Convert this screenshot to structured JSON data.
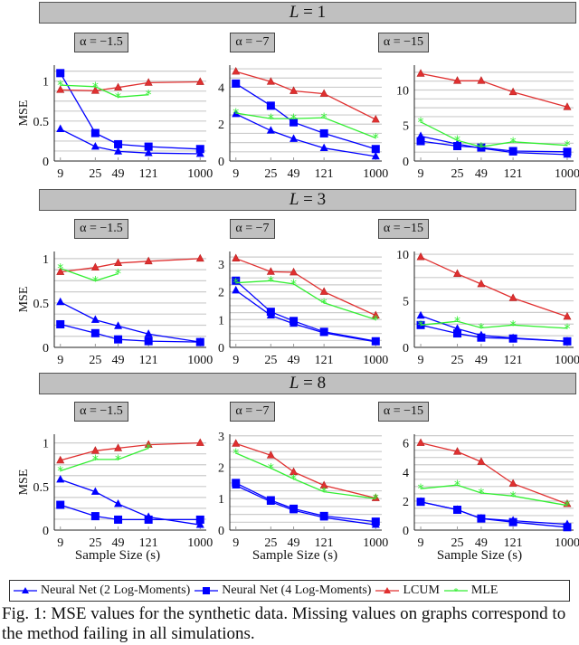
{
  "caption": "Fig. 1: MSE values for the synthetic data. Missing values on graphs correspond to the method failing in all simulations.",
  "colors": {
    "nn2": "#0000ff",
    "nn4": "#0000ff",
    "lcum": "#e03030",
    "mle": "#33ee33"
  },
  "legend": [
    {
      "label": "Neural Net (2 Log-Moments)",
      "marker": "triangle",
      "color": "#0000ff"
    },
    {
      "label": "Neural Net (4 Log-Moments)",
      "marker": "square",
      "color": "#0000ff"
    },
    {
      "label": "LCUM",
      "marker": "triangle",
      "color": "#e03030"
    },
    {
      "label": "MLE",
      "marker": "star",
      "color": "#33ee33"
    }
  ],
  "xlabel": "Sample Size (s)",
  "ylabel": "MSE",
  "groups": [
    {
      "title_var": "L",
      "title_val": "= 1"
    },
    {
      "title_var": "L",
      "title_val": "= 3"
    },
    {
      "title_var": "L",
      "title_val": "= 8"
    }
  ],
  "chart_data": [
    {
      "type": "line",
      "group": "L = 1",
      "title": "α = −1.5",
      "x": [
        9,
        25,
        49,
        121,
        1000
      ],
      "xticks": [
        "9",
        "25",
        "49",
        "121",
        "1000"
      ],
      "ylim": [
        0,
        1.2
      ],
      "yticks": [
        0,
        0.5,
        1
      ],
      "ytick_labels": [
        "0",
        "0.5",
        "1"
      ],
      "grid": true,
      "series": [
        {
          "name": "Neural Net (2 Log-Moments)",
          "values": [
            0.4,
            0.18,
            0.12,
            0.1,
            0.09
          ]
        },
        {
          "name": "Neural Net (4 Log-Moments)",
          "values": [
            1.1,
            0.35,
            0.21,
            0.18,
            0.15
          ]
        },
        {
          "name": "LCUM",
          "values": [
            0.89,
            0.88,
            0.92,
            0.98,
            0.99
          ]
        },
        {
          "name": "MLE",
          "values": [
            0.95,
            0.93,
            0.8,
            0.83,
            null
          ]
        }
      ]
    },
    {
      "type": "line",
      "group": "L = 1",
      "title": "α = −7",
      "x": [
        9,
        25,
        49,
        121,
        1000
      ],
      "xticks": [
        "9",
        "25",
        "49",
        "121",
        "1000"
      ],
      "ylim": [
        0,
        5.2
      ],
      "yticks": [
        0,
        2,
        4
      ],
      "ytick_labels": [
        "0",
        "2",
        "4"
      ],
      "grid": true,
      "series": [
        {
          "name": "Neural Net (2 Log-Moments)",
          "values": [
            2.55,
            1.65,
            1.2,
            0.7,
            0.25
          ]
        },
        {
          "name": "Neural Net (4 Log-Moments)",
          "values": [
            4.2,
            3.0,
            2.1,
            1.5,
            0.65
          ]
        },
        {
          "name": "LCUM",
          "values": [
            4.85,
            4.3,
            3.8,
            3.65,
            2.25
          ]
        },
        {
          "name": "MLE",
          "values": [
            2.6,
            2.3,
            2.3,
            2.35,
            1.25
          ]
        }
      ]
    },
    {
      "type": "line",
      "group": "L = 1",
      "title": "α = −15",
      "x": [
        9,
        25,
        49,
        121,
        1000
      ],
      "xticks": [
        "9",
        "25",
        "49",
        "121",
        "1000"
      ],
      "ylim": [
        0,
        13.5
      ],
      "yticks": [
        0,
        5,
        10
      ],
      "ytick_labels": [
        "0",
        "5",
        "10"
      ],
      "grid": true,
      "series": [
        {
          "name": "Neural Net (2 Log-Moments)",
          "values": [
            3.5,
            2.4,
            1.8,
            1.2,
            0.9
          ]
        },
        {
          "name": "Neural Net (4 Log-Moments)",
          "values": [
            2.8,
            2.1,
            1.9,
            1.4,
            1.3
          ]
        },
        {
          "name": "LCUM",
          "values": [
            12.3,
            11.3,
            11.3,
            9.7,
            7.6
          ]
        },
        {
          "name": "MLE",
          "values": [
            5.5,
            2.9,
            2.0,
            2.7,
            2.2
          ]
        }
      ]
    },
    {
      "type": "line",
      "group": "L = 3",
      "title": "α = −1.5",
      "x": [
        9,
        25,
        49,
        121,
        1000
      ],
      "xticks": [
        "9",
        "25",
        "49",
        "121",
        "1000"
      ],
      "ylim": [
        0,
        1.08
      ],
      "yticks": [
        0,
        0.5,
        1
      ],
      "ytick_labels": [
        "0",
        "0.5",
        "1"
      ],
      "grid": true,
      "series": [
        {
          "name": "Neural Net (2 Log-Moments)",
          "values": [
            0.51,
            0.31,
            0.24,
            0.15,
            0.06
          ]
        },
        {
          "name": "Neural Net (4 Log-Moments)",
          "values": [
            0.26,
            0.16,
            0.09,
            0.07,
            0.06
          ]
        },
        {
          "name": "LCUM",
          "values": [
            0.85,
            0.9,
            0.95,
            0.97,
            1.0
          ]
        },
        {
          "name": "MLE",
          "values": [
            0.89,
            0.75,
            0.83,
            null,
            null
          ]
        }
      ]
    },
    {
      "type": "line",
      "group": "L = 3",
      "title": "α = −7",
      "x": [
        9,
        25,
        49,
        121,
        1000
      ],
      "xticks": [
        "9",
        "25",
        "49",
        "121",
        "1000"
      ],
      "ylim": [
        0,
        3.45
      ],
      "yticks": [
        0,
        1,
        2,
        3
      ],
      "ytick_labels": [
        "0",
        "1",
        "2",
        "3"
      ],
      "grid": true,
      "series": [
        {
          "name": "Neural Net (2 Log-Moments)",
          "values": [
            2.05,
            1.15,
            0.85,
            0.52,
            0.2
          ]
        },
        {
          "name": "Neural Net (4 Log-Moments)",
          "values": [
            2.4,
            1.28,
            0.95,
            0.56,
            0.22
          ]
        },
        {
          "name": "LCUM",
          "values": [
            3.2,
            2.72,
            2.7,
            2.0,
            1.15
          ]
        },
        {
          "name": "MLE",
          "values": [
            2.32,
            2.4,
            2.28,
            1.6,
            1.0
          ]
        }
      ]
    },
    {
      "type": "line",
      "group": "L = 3",
      "title": "α = −15",
      "x": [
        9,
        25,
        49,
        121,
        1000
      ],
      "xticks": [
        "9",
        "25",
        "49",
        "121",
        "1000"
      ],
      "ylim": [
        0,
        10.3
      ],
      "yticks": [
        0,
        5,
        10
      ],
      "ytick_labels": [
        "0",
        "5",
        "10"
      ],
      "grid": true,
      "series": [
        {
          "name": "Neural Net (2 Log-Moments)",
          "values": [
            3.4,
            2.0,
            1.3,
            1.0,
            0.65
          ]
        },
        {
          "name": "Neural Net (4 Log-Moments)",
          "values": [
            2.4,
            1.5,
            1.05,
            0.95,
            0.65
          ]
        },
        {
          "name": "LCUM",
          "values": [
            9.7,
            7.9,
            6.8,
            5.3,
            3.3
          ]
        },
        {
          "name": "MLE",
          "values": [
            2.4,
            2.8,
            2.1,
            2.4,
            2.05
          ]
        }
      ]
    },
    {
      "type": "line",
      "group": "L = 8",
      "title": "α = −1.5",
      "x": [
        9,
        25,
        49,
        121,
        1000
      ],
      "xticks": [
        "9",
        "25",
        "49",
        "121",
        "1000"
      ],
      "ylim": [
        0,
        1.1
      ],
      "yticks": [
        0,
        0.5,
        1
      ],
      "ytick_labels": [
        "0",
        "0.5",
        "1"
      ],
      "grid": true,
      "series": [
        {
          "name": "Neural Net (2 Log-Moments)",
          "values": [
            0.58,
            0.44,
            0.3,
            0.15,
            0.06
          ]
        },
        {
          "name": "Neural Net (4 Log-Moments)",
          "values": [
            0.29,
            0.16,
            0.12,
            0.12,
            0.12
          ]
        },
        {
          "name": "LCUM",
          "values": [
            0.8,
            0.91,
            0.94,
            0.98,
            1.0
          ]
        },
        {
          "name": "MLE",
          "values": [
            0.68,
            0.81,
            0.81,
            0.94,
            null
          ]
        }
      ]
    },
    {
      "type": "line",
      "group": "L = 8",
      "title": "α = −7",
      "x": [
        9,
        25,
        49,
        121,
        1000
      ],
      "xticks": [
        "9",
        "25",
        "49",
        "121",
        "1000"
      ],
      "ylim": [
        0,
        3.05
      ],
      "yticks": [
        0,
        1,
        2,
        3
      ],
      "ytick_labels": [
        "0",
        "1",
        "2",
        "3"
      ],
      "grid": true,
      "series": [
        {
          "name": "Neural Net (2 Log-Moments)",
          "values": [
            1.42,
            0.9,
            0.63,
            0.4,
            0.17
          ]
        },
        {
          "name": "Neural Net (4 Log-Moments)",
          "values": [
            1.5,
            0.95,
            0.68,
            0.45,
            0.27
          ]
        },
        {
          "name": "LCUM",
          "values": [
            2.75,
            2.38,
            1.85,
            1.42,
            1.02
          ]
        },
        {
          "name": "MLE",
          "values": [
            2.45,
            1.97,
            1.63,
            1.22,
            1.0
          ]
        }
      ]
    },
    {
      "type": "line",
      "group": "L = 8",
      "title": "α = −15",
      "x": [
        9,
        25,
        49,
        121,
        1000
      ],
      "xticks": [
        "9",
        "25",
        "49",
        "121",
        "1000"
      ],
      "ylim": [
        0,
        6.6
      ],
      "yticks": [
        0,
        2,
        4,
        6
      ],
      "ytick_labels": [
        "0",
        "2",
        "4",
        "6"
      ],
      "grid": true,
      "series": [
        {
          "name": "Neural Net (2 Log-Moments)",
          "values": [
            1.95,
            1.4,
            0.8,
            0.65,
            0.4
          ]
        },
        {
          "name": "Neural Net (4 Log-Moments)",
          "values": [
            1.95,
            1.4,
            0.8,
            0.55,
            0.2
          ]
        },
        {
          "name": "LCUM",
          "values": [
            6.0,
            5.4,
            4.7,
            3.2,
            1.8
          ]
        },
        {
          "name": "MLE",
          "values": [
            2.85,
            3.1,
            2.55,
            2.35,
            1.7
          ]
        }
      ]
    }
  ]
}
